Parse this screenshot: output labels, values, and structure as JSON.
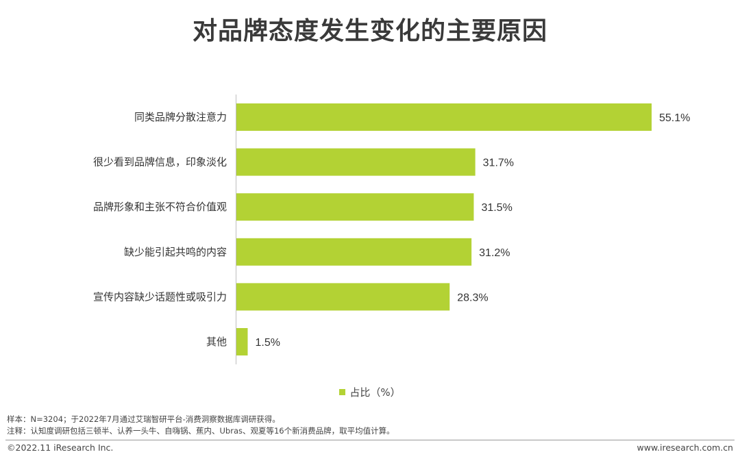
{
  "chart_data": {
    "type": "bar",
    "orientation": "horizontal",
    "title": "对品牌态度发生变化的主要原因",
    "categories": [
      "同类品牌分散注意力",
      "很少看到品牌信息，印象淡化",
      "品牌形象和主张不符合价值观",
      "缺少能引起共鸣的内容",
      "宣传内容缺少话题性或吸引力",
      "其他"
    ],
    "series": [
      {
        "name": "占比（%）",
        "values": [
          55.1,
          31.7,
          31.5,
          31.2,
          28.3,
          1.5
        ]
      }
    ],
    "value_labels": [
      "55.1%",
      "31.7%",
      "31.5%",
      "31.2%",
      "28.3%",
      "1.5%"
    ],
    "xlim": [
      0,
      60
    ],
    "grid": false,
    "legend_position": "bottom-center",
    "bar_color": "#b3d234"
  },
  "footnotes": {
    "sample": "样本：N=3204；于2022年7月通过艾瑞智研平台-消费洞察数据库调研获得。",
    "note": "注释：认知度调研包括三顿半、认养一头牛、自嗨锅、蕉内、Ubras、观夏等16个新消费品牌，取平均值计算。"
  },
  "footer": {
    "copyright": "©2022.11 iResearch Inc.",
    "website": "www.iresearch.com.cn"
  }
}
